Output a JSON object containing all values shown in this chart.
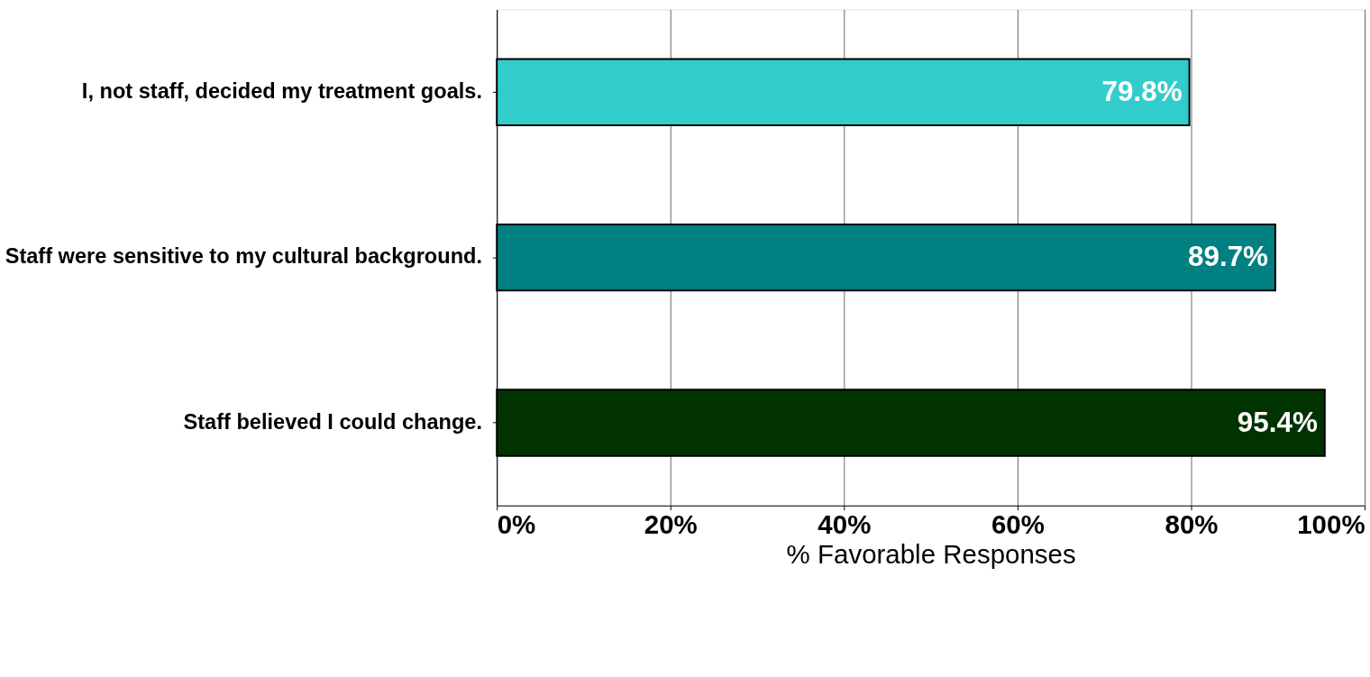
{
  "chart_data": {
    "type": "bar",
    "orientation": "horizontal",
    "categories": [
      "I, not staff, decided my treatment goals.",
      "Staff were sensitive to my cultural background.",
      "Staff believed I could change."
    ],
    "values": [
      79.8,
      89.7,
      95.4
    ],
    "colors": [
      "#33cccc",
      "#008080",
      "#003300"
    ],
    "value_labels": [
      "79.8%",
      "89.7%",
      "95.4%"
    ],
    "xlabel": "% Favorable Responses",
    "xlim": [
      0,
      100
    ],
    "xticks": [
      {
        "value": 0,
        "label": "0%"
      },
      {
        "value": 20,
        "label": "20%"
      },
      {
        "value": 40,
        "label": "40%"
      },
      {
        "value": 60,
        "label": "60%"
      },
      {
        "value": 80,
        "label": "80%"
      },
      {
        "value": 100,
        "label": "100%"
      }
    ],
    "grid": "x",
    "legend": false
  }
}
